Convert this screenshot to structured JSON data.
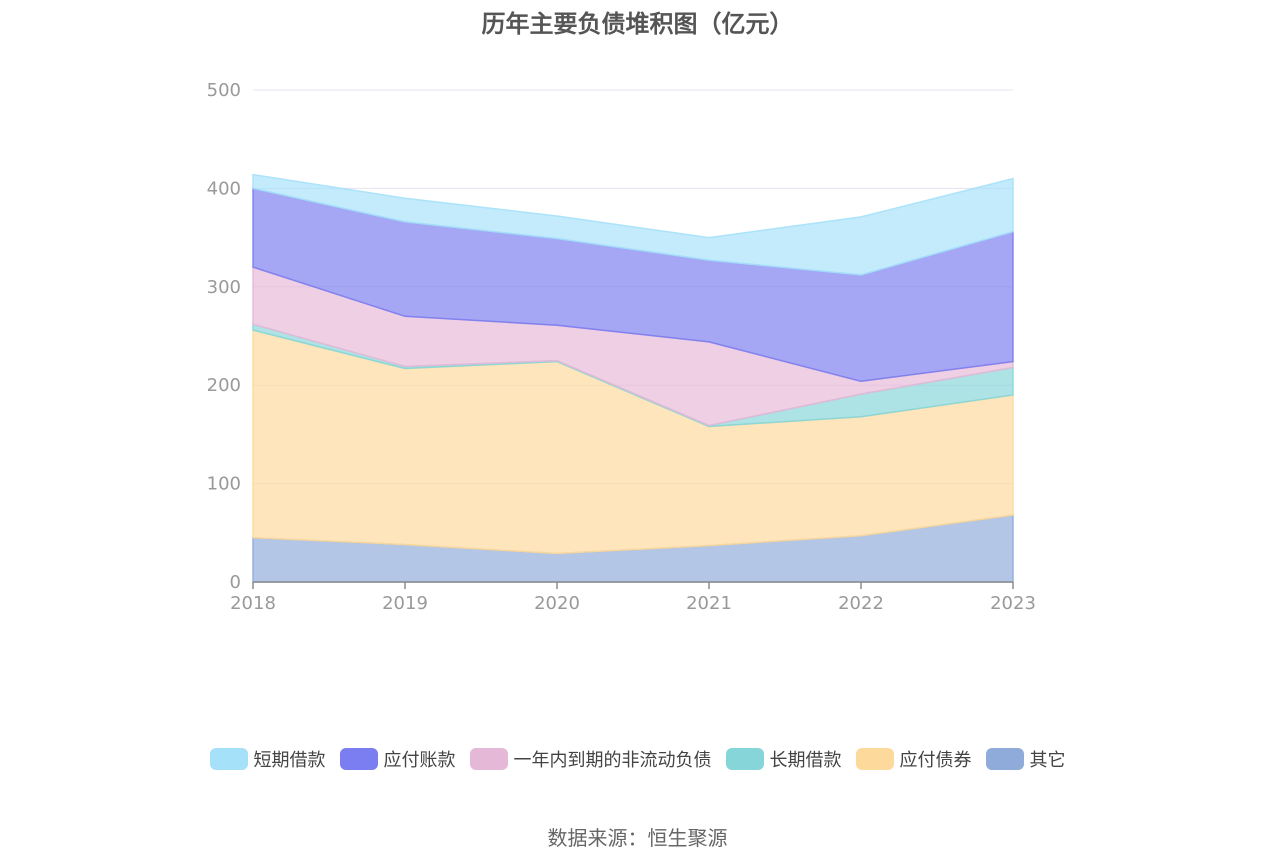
{
  "chart_data": {
    "type": "area",
    "stacked": true,
    "title": "历年主要负债堆积图（亿元）",
    "xlabel": "",
    "ylabel": "",
    "categories": [
      "2018",
      "2019",
      "2020",
      "2021",
      "2022",
      "2023"
    ],
    "ylim": [
      0,
      500
    ],
    "yticks": [
      0,
      100,
      200,
      300,
      400,
      500
    ],
    "grid": true,
    "legend_position": "bottom",
    "series": [
      {
        "name": "其它",
        "color": "#8fabd9",
        "values": [
          45,
          38,
          29,
          37,
          47,
          68
        ]
      },
      {
        "name": "应付债券",
        "color": "#fdd99b",
        "values": [
          211,
          179,
          195,
          121,
          121,
          122
        ]
      },
      {
        "name": "长期借款",
        "color": "#86d6d9",
        "values": [
          6,
          2,
          1,
          1,
          23,
          28
        ]
      },
      {
        "name": "一年内到期的非流动负债",
        "color": "#e6b8d7",
        "values": [
          58,
          51,
          36,
          85,
          13,
          6
        ]
      },
      {
        "name": "应付账款",
        "color": "#7b7ef0",
        "values": [
          80,
          96,
          88,
          83,
          108,
          132
        ]
      },
      {
        "name": "短期借款",
        "color": "#a6e1fa",
        "values": [
          14,
          24,
          23,
          23,
          59,
          54
        ]
      }
    ],
    "legend_order": [
      "短期借款",
      "应付账款",
      "一年内到期的非流动负债",
      "长期借款",
      "应付债券",
      "其它"
    ],
    "source": "数据来源：恒生聚源"
  }
}
